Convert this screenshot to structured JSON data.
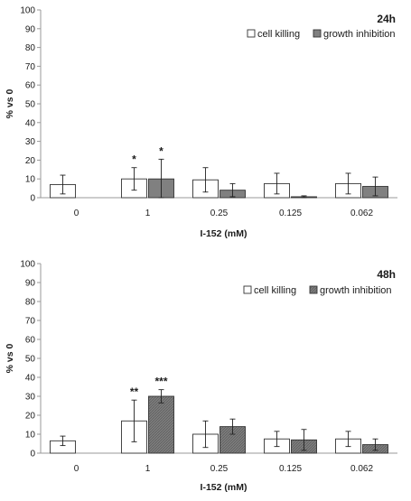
{
  "chart_data": [
    {
      "type": "bar",
      "title": "24h",
      "xlabel": "I-152 (mM)",
      "ylabel": "% vs 0",
      "ylim": [
        0,
        100
      ],
      "yticks": [
        0,
        10,
        20,
        30,
        40,
        50,
        60,
        70,
        80,
        90,
        100
      ],
      "grid": false,
      "legend_position": "top-right",
      "categories": [
        "0",
        "1",
        "0.25",
        "0.125",
        "0.062"
      ],
      "series": [
        {
          "name": "cell killing",
          "color": "#ffffff",
          "values": [
            7,
            10,
            9.5,
            7.5,
            7.5
          ],
          "errors": [
            5,
            6,
            6.5,
            5.5,
            5.5
          ]
        },
        {
          "name": "growth inhibition",
          "color": "#808080",
          "values": [
            null,
            10,
            4,
            0.5,
            6
          ],
          "errors": [
            null,
            10.5,
            3.5,
            0.5,
            5
          ]
        }
      ],
      "annotations": [
        {
          "category": "1",
          "series": "cell killing",
          "text": "*"
        },
        {
          "category": "1",
          "series": "growth inhibition",
          "text": "*"
        }
      ]
    },
    {
      "type": "bar",
      "title": "48h",
      "xlabel": "I-152 (mM)",
      "ylabel": "% vs 0",
      "ylim": [
        0,
        100
      ],
      "yticks": [
        0,
        10,
        20,
        30,
        40,
        50,
        60,
        70,
        80,
        90,
        100
      ],
      "grid": false,
      "legend_position": "top-right",
      "categories": [
        "0",
        "1",
        "0.25",
        "0.125",
        "0.062"
      ],
      "series": [
        {
          "name": "cell killing",
          "color": "#ffffff",
          "values": [
            6.5,
            17,
            10,
            7.5,
            7.5
          ],
          "errors": [
            2.5,
            11,
            7,
            4,
            4
          ]
        },
        {
          "name": "growth inhibition",
          "color": "#8c8c8c",
          "values": [
            null,
            30,
            14,
            7,
            4.5
          ],
          "errors": [
            null,
            3.5,
            4,
            5.5,
            3
          ]
        }
      ],
      "annotations": [
        {
          "category": "1",
          "series": "cell killing",
          "text": "**"
        },
        {
          "category": "1",
          "series": "growth inhibition",
          "text": "***"
        }
      ]
    }
  ]
}
